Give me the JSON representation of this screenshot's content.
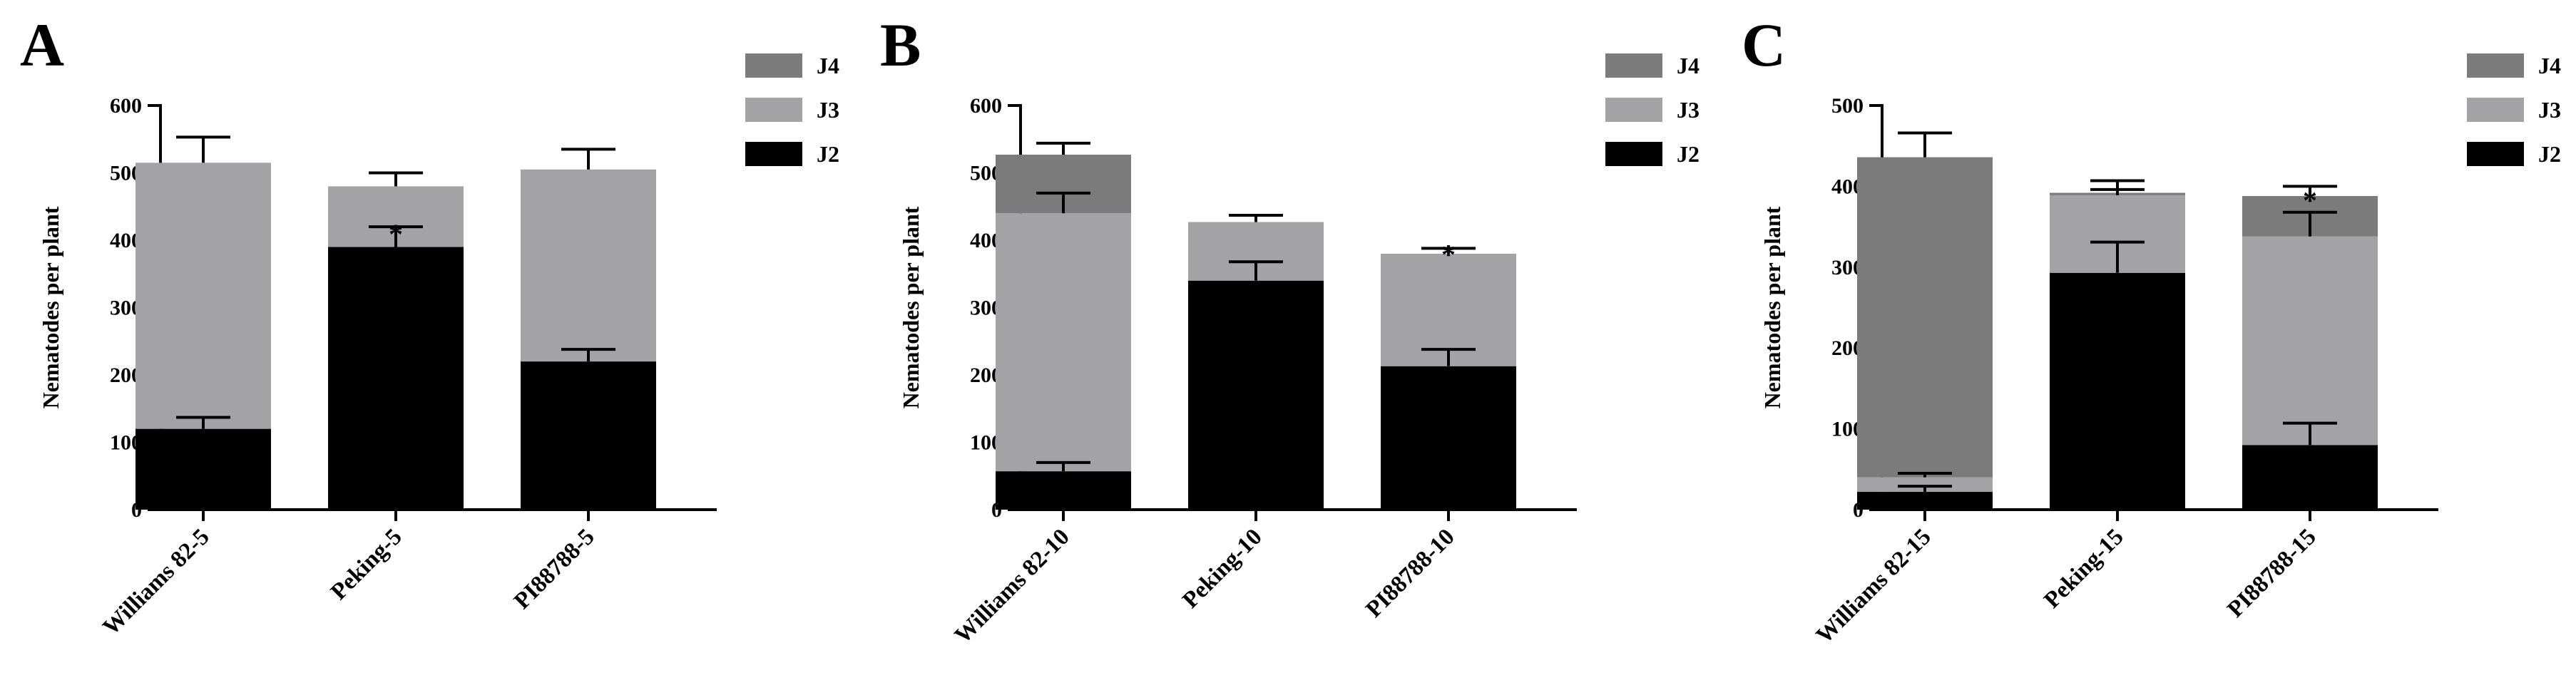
{
  "colors": {
    "J2": "#000000",
    "J3": "#a3a3a6",
    "J4": "#7b7b7b",
    "axis": "#000000"
  },
  "chart_data": [
    {
      "type": "bar",
      "stacked": true,
      "panel": "A",
      "ylabel": "Nematodes per plant",
      "ylim": [
        0,
        600
      ],
      "yticks": [
        0,
        100,
        200,
        300,
        400,
        500,
        600
      ],
      "categories": [
        "Williams 82-5",
        "Peking-5",
        "PI88788-5"
      ],
      "legend": [
        "J4",
        "J3",
        "J2"
      ],
      "series": [
        {
          "name": "J2",
          "values": [
            120,
            390,
            220
          ],
          "errors": [
            17,
            30,
            18
          ]
        },
        {
          "name": "J3",
          "values": [
            395,
            90,
            285
          ],
          "errors": [
            38,
            20,
            30
          ]
        },
        {
          "name": "J4",
          "values": [
            0,
            0,
            0
          ],
          "errors": [
            0,
            0,
            0
          ]
        }
      ],
      "annotations": [
        {
          "text": "*",
          "category": "Peking-5",
          "at": 420
        }
      ]
    },
    {
      "type": "bar",
      "stacked": true,
      "panel": "B",
      "ylabel": "Nematodes per plant",
      "ylim": [
        0,
        600
      ],
      "yticks": [
        0,
        100,
        200,
        300,
        400,
        500,
        600
      ],
      "categories": [
        "Williams 82-10",
        "Peking-10",
        "PI88788-10"
      ],
      "legend": [
        "J4",
        "J3",
        "J2"
      ],
      "series": [
        {
          "name": "J2",
          "values": [
            57,
            340,
            213
          ],
          "errors": [
            13,
            28,
            25
          ]
        },
        {
          "name": "J3",
          "values": [
            383,
            87,
            167
          ],
          "errors": [
            30,
            10,
            8
          ]
        },
        {
          "name": "J4",
          "values": [
            87,
            0,
            0
          ],
          "errors": [
            17,
            0,
            0
          ]
        }
      ],
      "annotations": [
        {
          "text": "*",
          "category": "PI88788-10",
          "at": 390
        }
      ]
    },
    {
      "type": "bar",
      "stacked": true,
      "panel": "C",
      "ylabel": "Nematodes per plant",
      "ylim": [
        0,
        500
      ],
      "yticks": [
        0,
        100,
        200,
        300,
        400,
        500
      ],
      "categories": [
        "Williams 82-15",
        "Peking-15",
        "PI88788-15"
      ],
      "legend": [
        "J4",
        "J3",
        "J2"
      ],
      "series": [
        {
          "name": "J2",
          "values": [
            22,
            293,
            80
          ],
          "errors": [
            7,
            38,
            27
          ]
        },
        {
          "name": "J3",
          "values": [
            18,
            96,
            258
          ],
          "errors": [
            5,
            7,
            30
          ]
        },
        {
          "name": "J4",
          "values": [
            396,
            3,
            50
          ],
          "errors": [
            30,
            15,
            12
          ]
        }
      ],
      "annotations": [
        {
          "text": "*",
          "category": "PI88788-15",
          "at": 392
        }
      ]
    }
  ]
}
